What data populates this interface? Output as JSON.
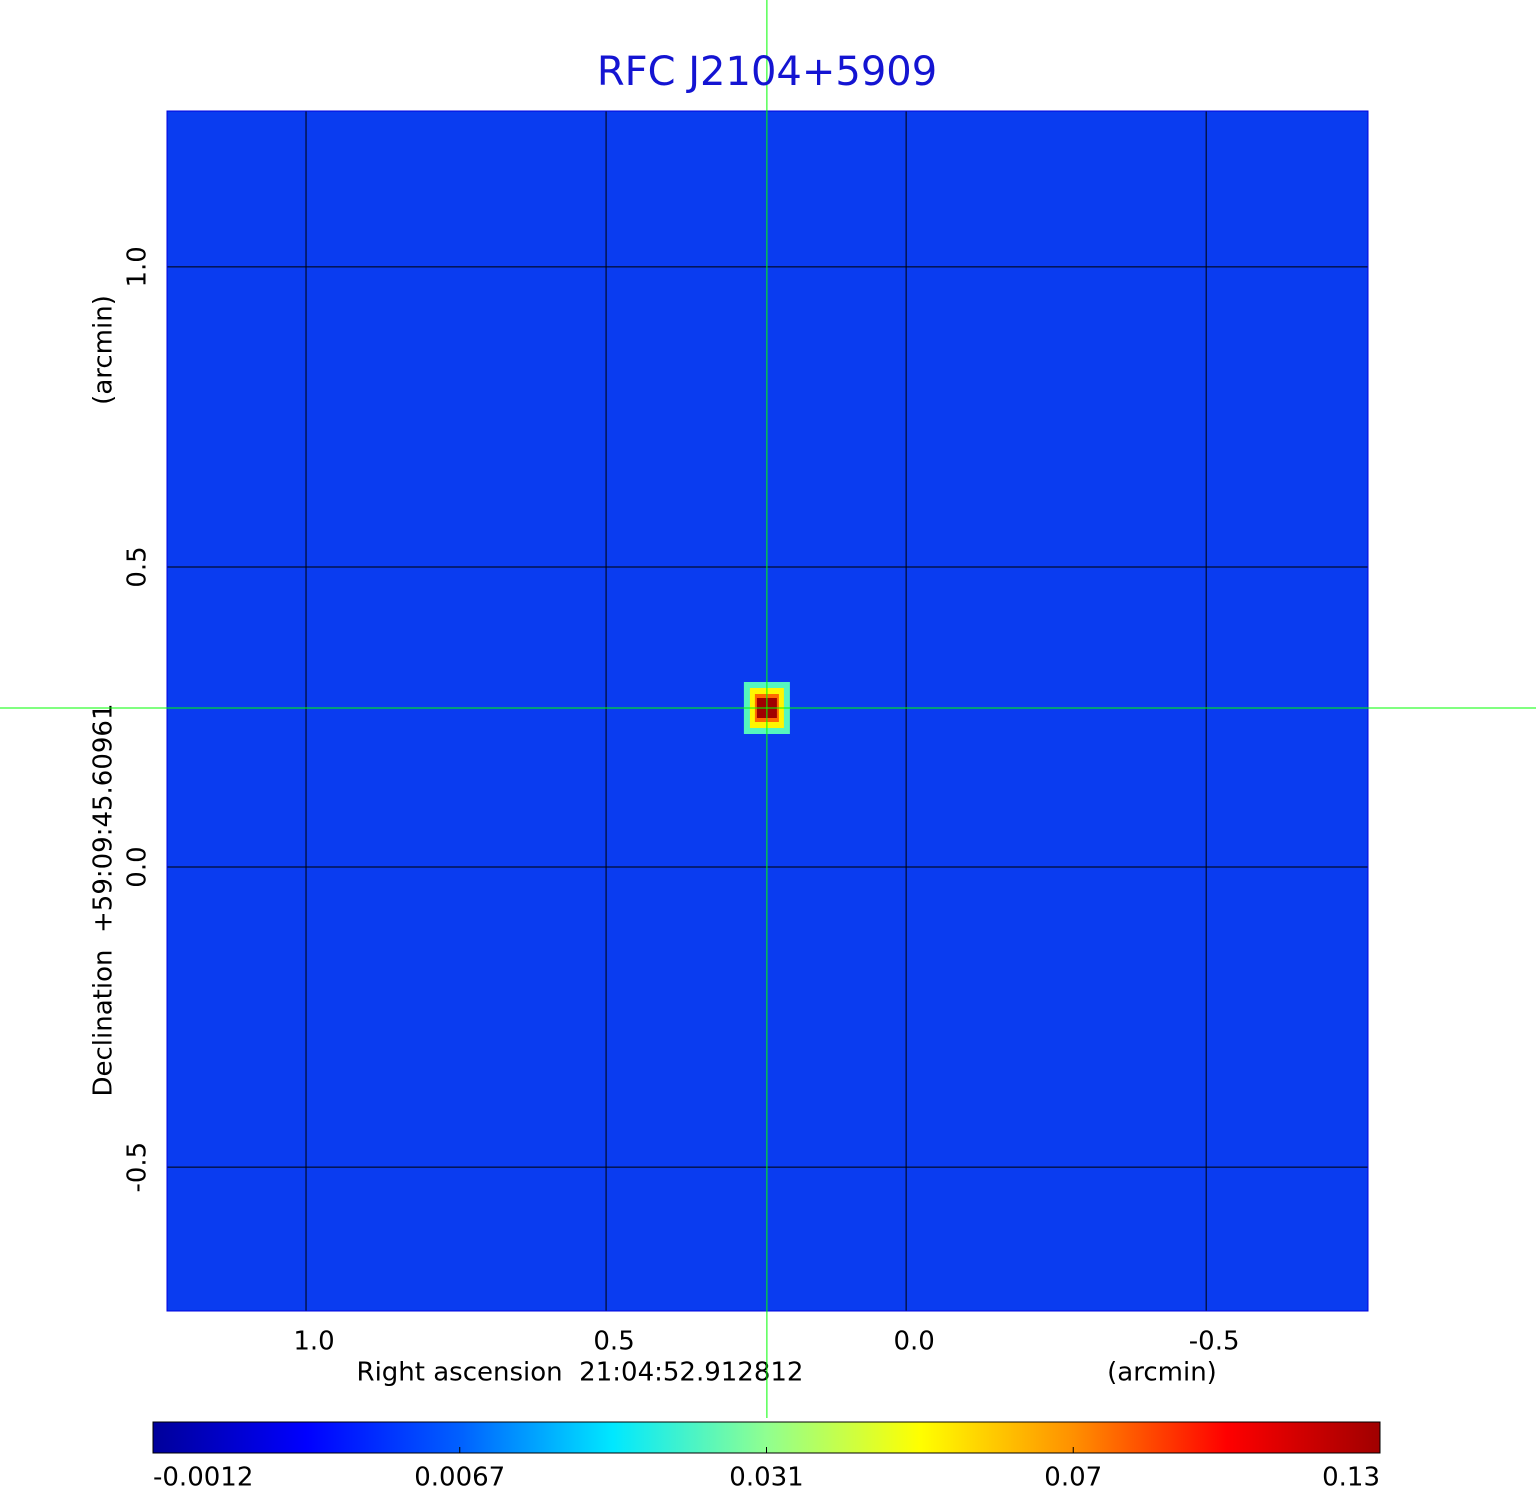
{
  "chart_data": {
    "type": "image",
    "title": "RFC J2104+5909",
    "x_label": "Right ascension  21:04:52.912812",
    "x_unit": "(arcmin)",
    "y_label": "Declination  +59:09:45.60961",
    "y_unit": "(arcmin)",
    "xlim": [
      1.235,
      -0.773
    ],
    "ylim": [
      -0.743,
      1.263
    ],
    "xticks": [
      {
        "value": 1,
        "label": "1.0"
      },
      0.5,
      {
        "value": 0,
        "label": "0.0"
      },
      -0.5
    ],
    "yticks": [
      -0.5,
      {
        "value": 0,
        "label": "0.0"
      },
      0.5,
      {
        "value": 1,
        "label": "1.0"
      }
    ],
    "grid": true,
    "crosshair": {
      "x": 0.232,
      "y": 0.265,
      "color": "#00ff00"
    },
    "source": {
      "x": 0.232,
      "y": 0.265,
      "peak": 0.13
    },
    "colorbar_ticks": [
      -0.0012,
      0.0067,
      0.031,
      0.07,
      0.13
    ],
    "colormap": [
      "#00009a",
      "#0000ff",
      "#0060ff",
      "#00e8ff",
      "#90ff90",
      "#ffff00",
      "#ff9000",
      "#ff0000",
      "#a00000"
    ],
    "background_color": "#0a3cf0"
  }
}
